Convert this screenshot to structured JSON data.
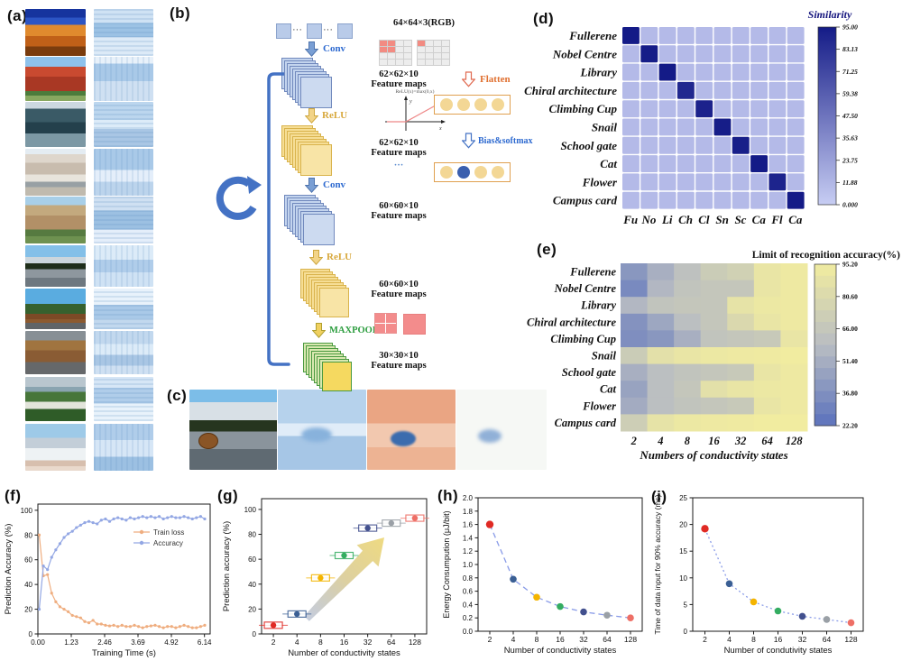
{
  "figure": {
    "panel_labels": {
      "a": "(a)",
      "b": "(b)",
      "c": "(c)",
      "d": "(d)",
      "e": "(e)",
      "f": "(f)",
      "g": "(g)",
      "h": "(h)",
      "i": "(i)"
    }
  },
  "panel_a": {
    "photos": [
      "fullerene",
      "nobel-centre",
      "library",
      "chiral-architecture",
      "climbing-cup",
      "snail",
      "school-gate",
      "cat",
      "flower",
      "campus-card"
    ]
  },
  "panel_b": {
    "input_label": "64×64×3(RGB)",
    "conv_label": "Conv",
    "relu_label": "ReLU",
    "maxpool_label": "MAXPOOL",
    "flatten_label": "Flatten",
    "bias_label": "Bias&softmax",
    "relu_formula": "ReLU(x)=max(0,x)",
    "dots": "···",
    "ellipsis": "···",
    "fm1": {
      "size": "62×62×10",
      "caption": "Feature maps"
    },
    "fm2": {
      "size": "62×62×10",
      "caption": "Feature maps"
    },
    "fm3": {
      "size": "60×60×10",
      "caption": "Feature maps"
    },
    "fm4": {
      "size": "60×60×10",
      "caption": "Feature maps"
    },
    "fm5": {
      "size": "30×30×10",
      "caption": "Feature maps"
    }
  },
  "panel_c": {
    "images": [
      "snail-photo",
      "feature-map-blue",
      "feature-map-orange",
      "feature-map-faint"
    ]
  },
  "palette": {
    "point_colors": [
      "#e02a24",
      "#3a5f94",
      "#f4b400",
      "#34ad61",
      "#42508e",
      "#9aa0a6",
      "#ee6f66"
    ],
    "diagram_blue": "#4472c4",
    "line_blue": "#8a9ce8"
  },
  "chart_data": [
    {
      "id": "d",
      "type": "heatmap",
      "title": "Similarity",
      "rows": [
        "Fullerene",
        "Nobel Centre",
        "Library",
        "Chiral architecture",
        "Climbing Cup",
        "Snail",
        "School gate",
        "Cat",
        "Flower",
        "Campus card"
      ],
      "cols": [
        "Fu",
        "No",
        "Li",
        "Ch",
        "Cl",
        "Sn",
        "Sc",
        "Ca",
        "Fl",
        "Ca"
      ],
      "diag_values": [
        95,
        94,
        95,
        88,
        91,
        94,
        93,
        95,
        90,
        95
      ],
      "off_diag_value": 10,
      "vmin": 0,
      "vmax": 95,
      "colorbar_ticks": [
        "95.00",
        "83.13",
        "71.25",
        "59.38",
        "47.50",
        "35.63",
        "23.75",
        "11.88",
        "0.000"
      ],
      "color_low": "#c7cdf3",
      "color_high": "#141b87"
    },
    {
      "id": "e",
      "type": "heatmap",
      "title": "Limit of recognition accuracy(%)",
      "xlabel": "Numbers of conductivity states",
      "rows": [
        "Fullerene",
        "Nobel Centre",
        "Library",
        "Chiral architecture",
        "Climbing Cup",
        "Snail",
        "School gate",
        "Cat",
        "Flower",
        "Campus card"
      ],
      "cols": [
        "2",
        "4",
        "8",
        "16",
        "32",
        "64",
        "128"
      ],
      "values": [
        [
          40,
          52,
          62,
          70,
          74,
          90,
          93
        ],
        [
          34,
          56,
          64,
          66,
          66,
          90,
          93
        ],
        [
          56,
          64,
          66,
          66,
          88,
          92,
          93
        ],
        [
          38,
          48,
          60,
          66,
          80,
          90,
          93
        ],
        [
          36,
          40,
          52,
          64,
          66,
          68,
          90
        ],
        [
          70,
          86,
          90,
          92,
          93,
          94,
          95
        ],
        [
          52,
          60,
          64,
          66,
          68,
          90,
          93
        ],
        [
          46,
          60,
          66,
          86,
          90,
          92,
          93
        ],
        [
          50,
          60,
          64,
          66,
          68,
          90,
          93
        ],
        [
          72,
          88,
          92,
          93,
          94,
          95,
          95
        ]
      ],
      "vmin": 22.2,
      "vmax": 95.2,
      "colorbar_ticks": [
        "95.20",
        "80.60",
        "66.00",
        "51.40",
        "36.80",
        "22.20"
      ],
      "color_low": "#5b72bd",
      "color_mid": "#b9bdc2",
      "color_high": "#f1eca0"
    },
    {
      "id": "f",
      "type": "line",
      "xlabel": "Training Time (s)",
      "ylabel": "Prediction Accuracy (%)",
      "xtick_labels": [
        "0.00",
        "1.23",
        "2.46",
        "3.69",
        "4.92",
        "6.14"
      ],
      "xtick_values": [
        0,
        1.23,
        2.46,
        3.69,
        4.92,
        6.14
      ],
      "yticks": [
        0,
        20,
        40,
        60,
        80,
        100
      ],
      "x_start": 0.05,
      "x_step": 0.1525,
      "series": [
        {
          "name": "Train loss",
          "color": "#efae80",
          "values": [
            80,
            47,
            48,
            33,
            26,
            22,
            20,
            18,
            15,
            14,
            13,
            10,
            9,
            11,
            8,
            8,
            7,
            6.5,
            7,
            6,
            7,
            6,
            6,
            7,
            6,
            5,
            6,
            6.5,
            7,
            6,
            5,
            6,
            6,
            5,
            6,
            7,
            6,
            5,
            5,
            6,
            7
          ]
        },
        {
          "name": "Accuracy",
          "color": "#93a7e4",
          "values": [
            20,
            55,
            52,
            62,
            68,
            73,
            78,
            81,
            83,
            86,
            88,
            90,
            91,
            90,
            89,
            92,
            93,
            91,
            93,
            94,
            93,
            92,
            94,
            93,
            94,
            95,
            94,
            95,
            94,
            95,
            93,
            94,
            95,
            94,
            94,
            95,
            94,
            93,
            94,
            95,
            93
          ]
        }
      ]
    },
    {
      "id": "g",
      "type": "box-scatter",
      "xlabel": "Number of conductivity states",
      "ylabel": "Prediction accuracy (%)",
      "categories": [
        "2",
        "4",
        "8",
        "16",
        "32",
        "64",
        "128"
      ],
      "values": [
        7,
        16,
        45,
        63,
        85,
        89,
        93
      ],
      "yticks": [
        0,
        20,
        40,
        60,
        80,
        100
      ],
      "point_colors": [
        "#e02a24",
        "#3a5f94",
        "#f4b400",
        "#34ad61",
        "#42508e",
        "#9aa0a6",
        "#ee6f66"
      ],
      "annotation": "gradient-trend-arrow-up-right"
    },
    {
      "id": "h",
      "type": "scatter-line",
      "xlabel": "Number of conductivity states",
      "ylabel": "Energy Consumpution (μJ/bit)",
      "categories": [
        "2",
        "4",
        "8",
        "16",
        "32",
        "64",
        "128"
      ],
      "values": [
        1.6,
        0.78,
        0.51,
        0.37,
        0.29,
        0.24,
        0.2
      ],
      "ytick_labels": [
        "0.0",
        "0.2",
        "0.4",
        "0.6",
        "0.8",
        "1.0",
        "1.2",
        "1.4",
        "1.6",
        "1.8",
        "2.0"
      ],
      "ymax": 2.0,
      "line": "dashed",
      "line_color": "#8a9ce8",
      "point_colors": [
        "#e02a24",
        "#3a5f94",
        "#f4b400",
        "#34ad61",
        "#42508e",
        "#9aa0a6",
        "#ee6f66"
      ]
    },
    {
      "id": "i",
      "type": "scatter-line",
      "xlabel": "Number of condutivity states",
      "ylabel": "Time of data input for 90% accuracy (ms)",
      "categories": [
        "2",
        "4",
        "8",
        "16",
        "32",
        "64",
        "128"
      ],
      "values": [
        19.2,
        8.9,
        5.5,
        3.8,
        2.8,
        2.2,
        1.6
      ],
      "yticks": [
        0,
        5,
        10,
        15,
        20,
        25
      ],
      "ymax": 25,
      "line": "dotted",
      "line_color": "#8a9ce8",
      "point_colors": [
        "#e02a24",
        "#3a5f94",
        "#f4b400",
        "#34ad61",
        "#42508e",
        "#9aa0a6",
        "#ee6f66"
      ]
    }
  ]
}
